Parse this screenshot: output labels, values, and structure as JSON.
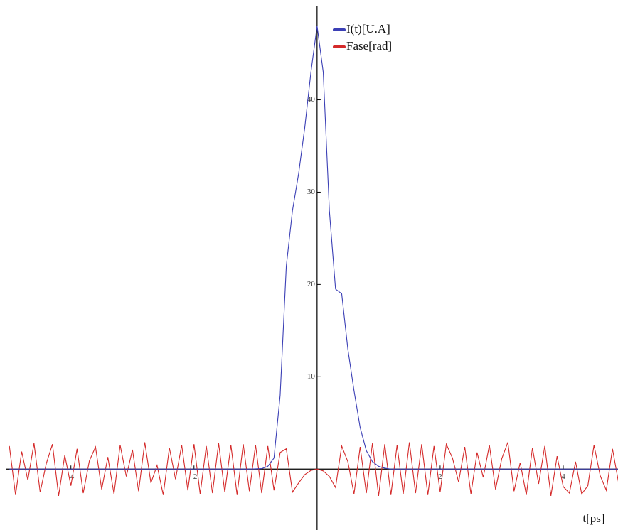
{
  "chart_data": {
    "type": "line",
    "xlabel": "t[ps]",
    "xlim": [
      -5.06,
      4.89
    ],
    "ylim": [
      -6.6,
      50.2
    ],
    "xticks": [
      -4,
      -2,
      2,
      4
    ],
    "yticks": [
      10,
      20,
      30,
      40
    ],
    "legend": "top",
    "x": [
      -5,
      -4.9,
      -4.8,
      -4.7,
      -4.6,
      -4.5,
      -4.4,
      -4.3,
      -4.2,
      -4.1,
      -4,
      -3.9,
      -3.8,
      -3.7,
      -3.6,
      -3.5,
      -3.4,
      -3.3,
      -3.2,
      -3.1,
      -3,
      -2.9,
      -2.8,
      -2.7,
      -2.6,
      -2.5,
      -2.4,
      -2.3,
      -2.2,
      -2.1,
      -2,
      -1.9,
      -1.8,
      -1.7,
      -1.6,
      -1.5,
      -1.4,
      -1.3,
      -1.2,
      -1.1,
      -1,
      -0.9,
      -0.8,
      -0.7,
      -0.6,
      -0.5,
      -0.4,
      -0.3,
      -0.2,
      -0.1,
      0,
      0.1,
      0.2,
      0.3,
      0.4,
      0.5,
      0.6,
      0.7,
      0.8,
      0.9,
      1,
      1.1,
      1.2,
      1.3,
      1.4,
      1.5,
      1.6,
      1.7,
      1.8,
      1.9,
      2,
      2.1,
      2.2,
      2.3,
      2.4,
      2.5,
      2.6,
      2.7,
      2.8,
      2.9,
      3,
      3.1,
      3.2,
      3.3,
      3.4,
      3.5,
      3.6,
      3.7,
      3.8,
      3.9,
      4,
      4.1,
      4.2,
      4.3,
      4.4,
      4.5,
      4.6,
      4.7,
      4.8,
      4.9
    ],
    "series": [
      {
        "name": "I(t)[U.A]",
        "color": "#3b3fb5",
        "values": [
          0,
          0,
          0,
          0,
          0,
          0,
          0,
          0,
          0,
          0,
          0,
          0,
          0,
          0,
          0,
          0,
          0,
          0,
          0,
          0,
          0,
          0,
          0,
          0,
          0,
          0,
          0,
          0,
          0,
          0,
          0,
          0,
          0,
          0,
          0,
          0,
          0,
          0,
          0,
          0,
          0.02,
          0.05,
          0.3,
          1.2,
          8,
          22,
          28,
          32,
          37,
          43,
          48,
          43,
          28,
          19.5,
          19,
          13,
          8.5,
          4.5,
          2,
          0.8,
          0.3,
          0.1,
          0,
          0,
          0,
          0,
          0,
          0,
          0,
          0,
          0,
          0,
          0,
          0,
          0,
          0,
          0,
          0,
          0,
          0,
          0,
          0,
          0,
          0,
          0,
          0,
          0,
          0,
          0,
          0,
          0,
          0,
          0,
          0,
          0,
          0,
          0,
          0,
          0,
          0
        ]
      },
      {
        "name": "Fase[rad]",
        "color": "#d42a2a",
        "values": [
          2.5,
          -2.8,
          1.9,
          -1.2,
          2.8,
          -2.5,
          0.6,
          2.7,
          -2.9,
          1.5,
          -1.8,
          2.2,
          -2.6,
          0.9,
          2.4,
          -2.2,
          1.3,
          -2.7,
          2.6,
          -0.8,
          2.1,
          -2.4,
          2.9,
          -1.5,
          0.4,
          -2.8,
          2.3,
          -1.1,
          2.6,
          -2.3,
          2.7,
          -2.7,
          2.5,
          -2.6,
          2.8,
          -2.5,
          2.6,
          -2.8,
          2.7,
          -2.4,
          2.6,
          -2.6,
          2.5,
          -2.3,
          1.8,
          2.2,
          -2.5,
          -1.5,
          -0.6,
          -0.15,
          0,
          -0.2,
          -0.8,
          -2,
          2.5,
          0.8,
          -2.7,
          2.4,
          -2.6,
          2.8,
          -2.9,
          2.7,
          -2.8,
          2.6,
          -2.7,
          2.9,
          -2.6,
          2.7,
          -2.8,
          2.5,
          -2.5,
          2.7,
          1.2,
          -1.4,
          2.4,
          -2.7,
          1.8,
          -0.9,
          2.6,
          -2.2,
          1.1,
          2.9,
          -2.4,
          0.7,
          -2.8,
          2.3,
          -1.6,
          2.5,
          -2.9,
          1.4,
          -1.9,
          -2.6,
          0.8,
          -2.7,
          -1.8,
          2.6,
          -0.7,
          -2.3,
          2.2,
          -1.5
        ]
      }
    ]
  }
}
